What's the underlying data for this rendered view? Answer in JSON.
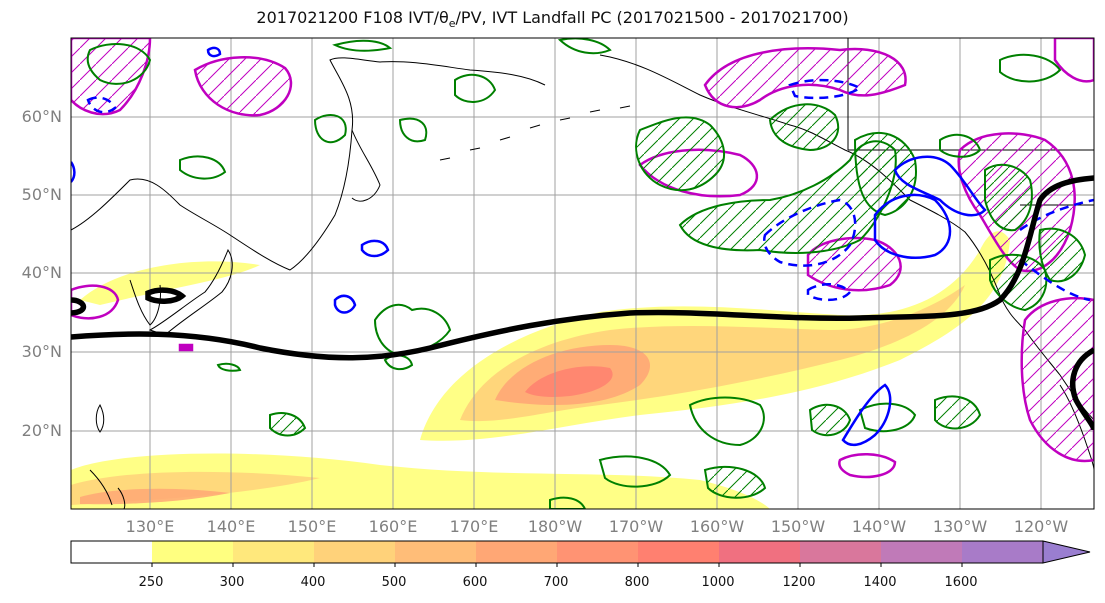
{
  "title": {
    "prefix": "2017021200 F108 IVT/θ",
    "sub": "e",
    "suffix": "/PV, IVT Landfall PC (2017021500 - 2017021700)"
  },
  "lat_labels": [
    "60°N",
    "50°N",
    "40°N",
    "30°N",
    "20°N"
  ],
  "lon_labels": [
    "130°E",
    "140°E",
    "150°E",
    "160°E",
    "170°E",
    "180°W",
    "170°W",
    "160°W",
    "150°W",
    "140°W",
    "130°W",
    "120°W"
  ],
  "colorbar": {
    "ticks": [
      "250",
      "300",
      "400",
      "500",
      "600",
      "700",
      "800",
      "1000",
      "1200",
      "1400",
      "1600"
    ],
    "colors": [
      "#ffffff",
      "#ffff80",
      "#ffe87c",
      "#ffd27a",
      "#ffbd78",
      "#ffa775",
      "#ff9373",
      "#ff8070",
      "#f07080",
      "#d9779c",
      "#c07ab8",
      "#a87bc8",
      "#9a7ed0"
    ]
  },
  "legend_colors": {
    "ivt_fill": "#ffff80",
    "theta_e_contour": "#008000",
    "pv_contour": "#0000ff",
    "ivt_pc_contour": "#c000c0",
    "path_line": "#000000",
    "coastline": "#000000",
    "grid": "#a0a0a0"
  }
}
